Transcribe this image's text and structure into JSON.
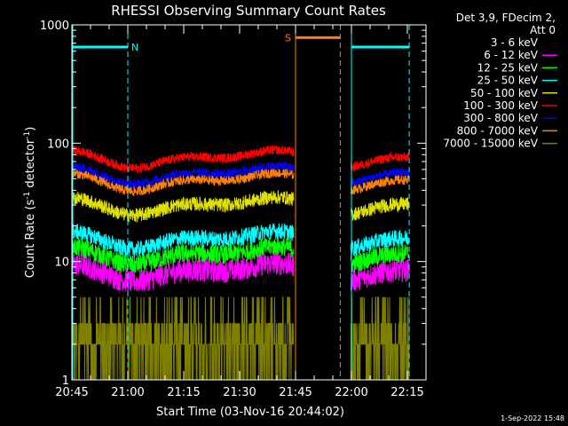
{
  "chart_data": {
    "type": "line",
    "title": "RHESSI Observing Summary Count Rates",
    "xlabel": "Start Time (03-Nov-16 20:44:02)",
    "ylabel_main": "Count Rate (s",
    "ylabel_sup1": "-1",
    "ylabel_mid": " detector",
    "ylabel_sup2": "-1",
    "ylabel_end": ")",
    "yscale": "log",
    "ylim": [
      1,
      1000
    ],
    "xlim_min": [
      1245,
      1340
    ],
    "x_ticks": [
      {
        "t": 1245,
        "label": "20:45"
      },
      {
        "t": 1260,
        "label": "21:00"
      },
      {
        "t": 1275,
        "label": "21:15"
      },
      {
        "t": 1290,
        "label": "21:30"
      },
      {
        "t": 1305,
        "label": "21:45"
      },
      {
        "t": 1320,
        "label": "22:00"
      },
      {
        "t": 1335,
        "label": "22:15"
      }
    ],
    "y_ticks": [
      {
        "v": 1,
        "label": "1"
      },
      {
        "v": 10,
        "label": "10"
      },
      {
        "v": 100,
        "label": "100"
      },
      {
        "v": 1000,
        "label": "1000"
      }
    ],
    "legend_header": [
      "Det 3,9, FDecim 2,",
      "Att 0"
    ],
    "series": [
      {
        "name": "3 - 6 keV",
        "color": "#000000",
        "base": 12,
        "jitter": 0.1
      },
      {
        "name": "6 - 12 keV",
        "color": "#ff00ff",
        "base": 8.3,
        "jitter": 0.1
      },
      {
        "name": "12 - 25 keV",
        "color": "#00ff00",
        "base": 11.5,
        "jitter": 0.08
      },
      {
        "name": "25 - 50 keV",
        "color": "#00ffff",
        "base": 15.5,
        "jitter": 0.07
      },
      {
        "name": "50 - 100 keV",
        "color": "#e0e000",
        "base": 30,
        "jitter": 0.06
      },
      {
        "name": "100 - 300 keV",
        "color": "#ff0000",
        "base": 75,
        "jitter": 0.04
      },
      {
        "name": "300 - 800 keV",
        "color": "#0000ff",
        "base": 55,
        "jitter": 0.04
      },
      {
        "name": "800 - 7000 keV",
        "color": "#ff8000",
        "base": 48,
        "jitter": 0.04
      },
      {
        "name": "7000 - 15000 keV",
        "color": "#808000",
        "base": 2,
        "jitter": 0
      }
    ],
    "data_segments": [
      [
        1245,
        1304.5
      ],
      [
        1319.8,
        1335.5
      ]
    ],
    "night_marker": {
      "label": "N",
      "color": "#00ffff",
      "level": 650,
      "ranges": [
        [
          1245,
          1260
        ],
        [
          1320,
          1335.5
        ]
      ]
    },
    "saa_marker": {
      "label": "S",
      "color": "#ff8000",
      "level": 780,
      "range": [
        1305,
        1317
      ]
    },
    "timestamp": "1-Sep-2022 15:48"
  }
}
